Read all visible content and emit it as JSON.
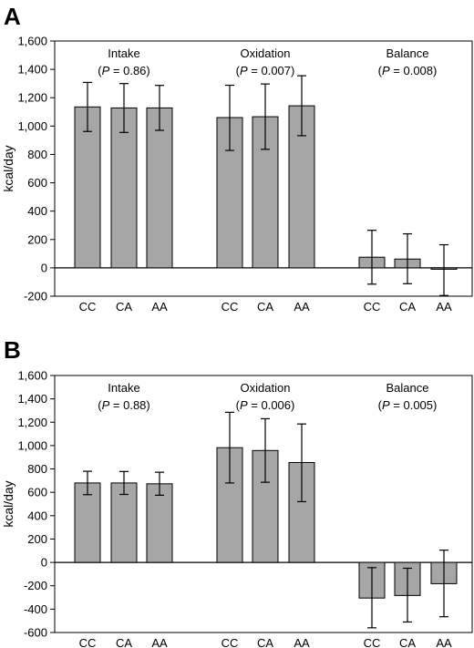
{
  "figure": {
    "background": "#ffffff"
  },
  "chart_data": [
    {
      "panel_label": "A",
      "type": "bar",
      "ylabel": "kcal/day",
      "ylim": [
        -200,
        1600
      ],
      "yticks": [
        -200,
        0,
        200,
        400,
        600,
        800,
        1000,
        1200,
        1400,
        1600
      ],
      "ytick_labels": [
        "-200",
        "0",
        "200",
        "400",
        "600",
        "800",
        "1,000",
        "1,200",
        "1,400",
        "1,600"
      ],
      "grid": false,
      "legend": "none",
      "bar_color": "#a6a6a6",
      "groups": [
        {
          "title": "Intake",
          "p_prefix": "(",
          "p_letter": "P",
          "p_suffix": " = 0.86)",
          "categories": [
            "CC",
            "CA",
            "AA"
          ],
          "values": [
            1135,
            1128,
            1128
          ],
          "error_low": [
            962,
            955,
            970
          ],
          "error_high": [
            1308,
            1300,
            1287
          ]
        },
        {
          "title": "Oxidation",
          "p_prefix": "(",
          "p_letter": "P",
          "p_suffix": " = 0.007)",
          "categories": [
            "CC",
            "CA",
            "AA"
          ],
          "values": [
            1060,
            1066,
            1143
          ],
          "error_low": [
            828,
            836,
            932
          ],
          "error_high": [
            1288,
            1297,
            1355
          ]
        },
        {
          "title": "Balance",
          "p_prefix": "(",
          "p_letter": "P",
          "p_suffix": " = 0.008)",
          "categories": [
            "CC",
            "CA",
            "AA"
          ],
          "values": [
            75,
            62,
            -10
          ],
          "error_low": [
            -115,
            -112,
            -195
          ],
          "error_high": [
            265,
            240,
            163
          ]
        }
      ]
    },
    {
      "panel_label": "B",
      "type": "bar",
      "ylabel": "kcal/day",
      "ylim": [
        -600,
        1600
      ],
      "yticks": [
        -600,
        -400,
        -200,
        0,
        200,
        400,
        600,
        800,
        1000,
        1200,
        1400,
        1600
      ],
      "ytick_labels": [
        "-600",
        "-400",
        "-200",
        "0",
        "200",
        "400",
        "600",
        "800",
        "1,000",
        "1,200",
        "1,400",
        "1,600"
      ],
      "grid": false,
      "legend": "none",
      "bar_color": "#a6a6a6",
      "groups": [
        {
          "title": "Intake",
          "p_prefix": "(",
          "p_letter": "P",
          "p_suffix": " = 0.88)",
          "categories": [
            "CC",
            "CA",
            "AA"
          ],
          "values": [
            680,
            680,
            673
          ],
          "error_low": [
            580,
            582,
            575
          ],
          "error_high": [
            780,
            778,
            772
          ]
        },
        {
          "title": "Oxidation",
          "p_prefix": "(",
          "p_letter": "P",
          "p_suffix": " = 0.006)",
          "categories": [
            "CC",
            "CA",
            "AA"
          ],
          "values": [
            982,
            958,
            855
          ],
          "error_low": [
            680,
            686,
            520
          ],
          "error_high": [
            1285,
            1230,
            1185
          ]
        },
        {
          "title": "Balance",
          "p_prefix": "(",
          "p_letter": "P",
          "p_suffix": " = 0.005)",
          "categories": [
            "CC",
            "CA",
            "AA"
          ],
          "values": [
            -305,
            -283,
            -182
          ],
          "error_low": [
            -560,
            -510,
            -465
          ],
          "error_high": [
            -45,
            -50,
            105
          ]
        }
      ]
    }
  ]
}
